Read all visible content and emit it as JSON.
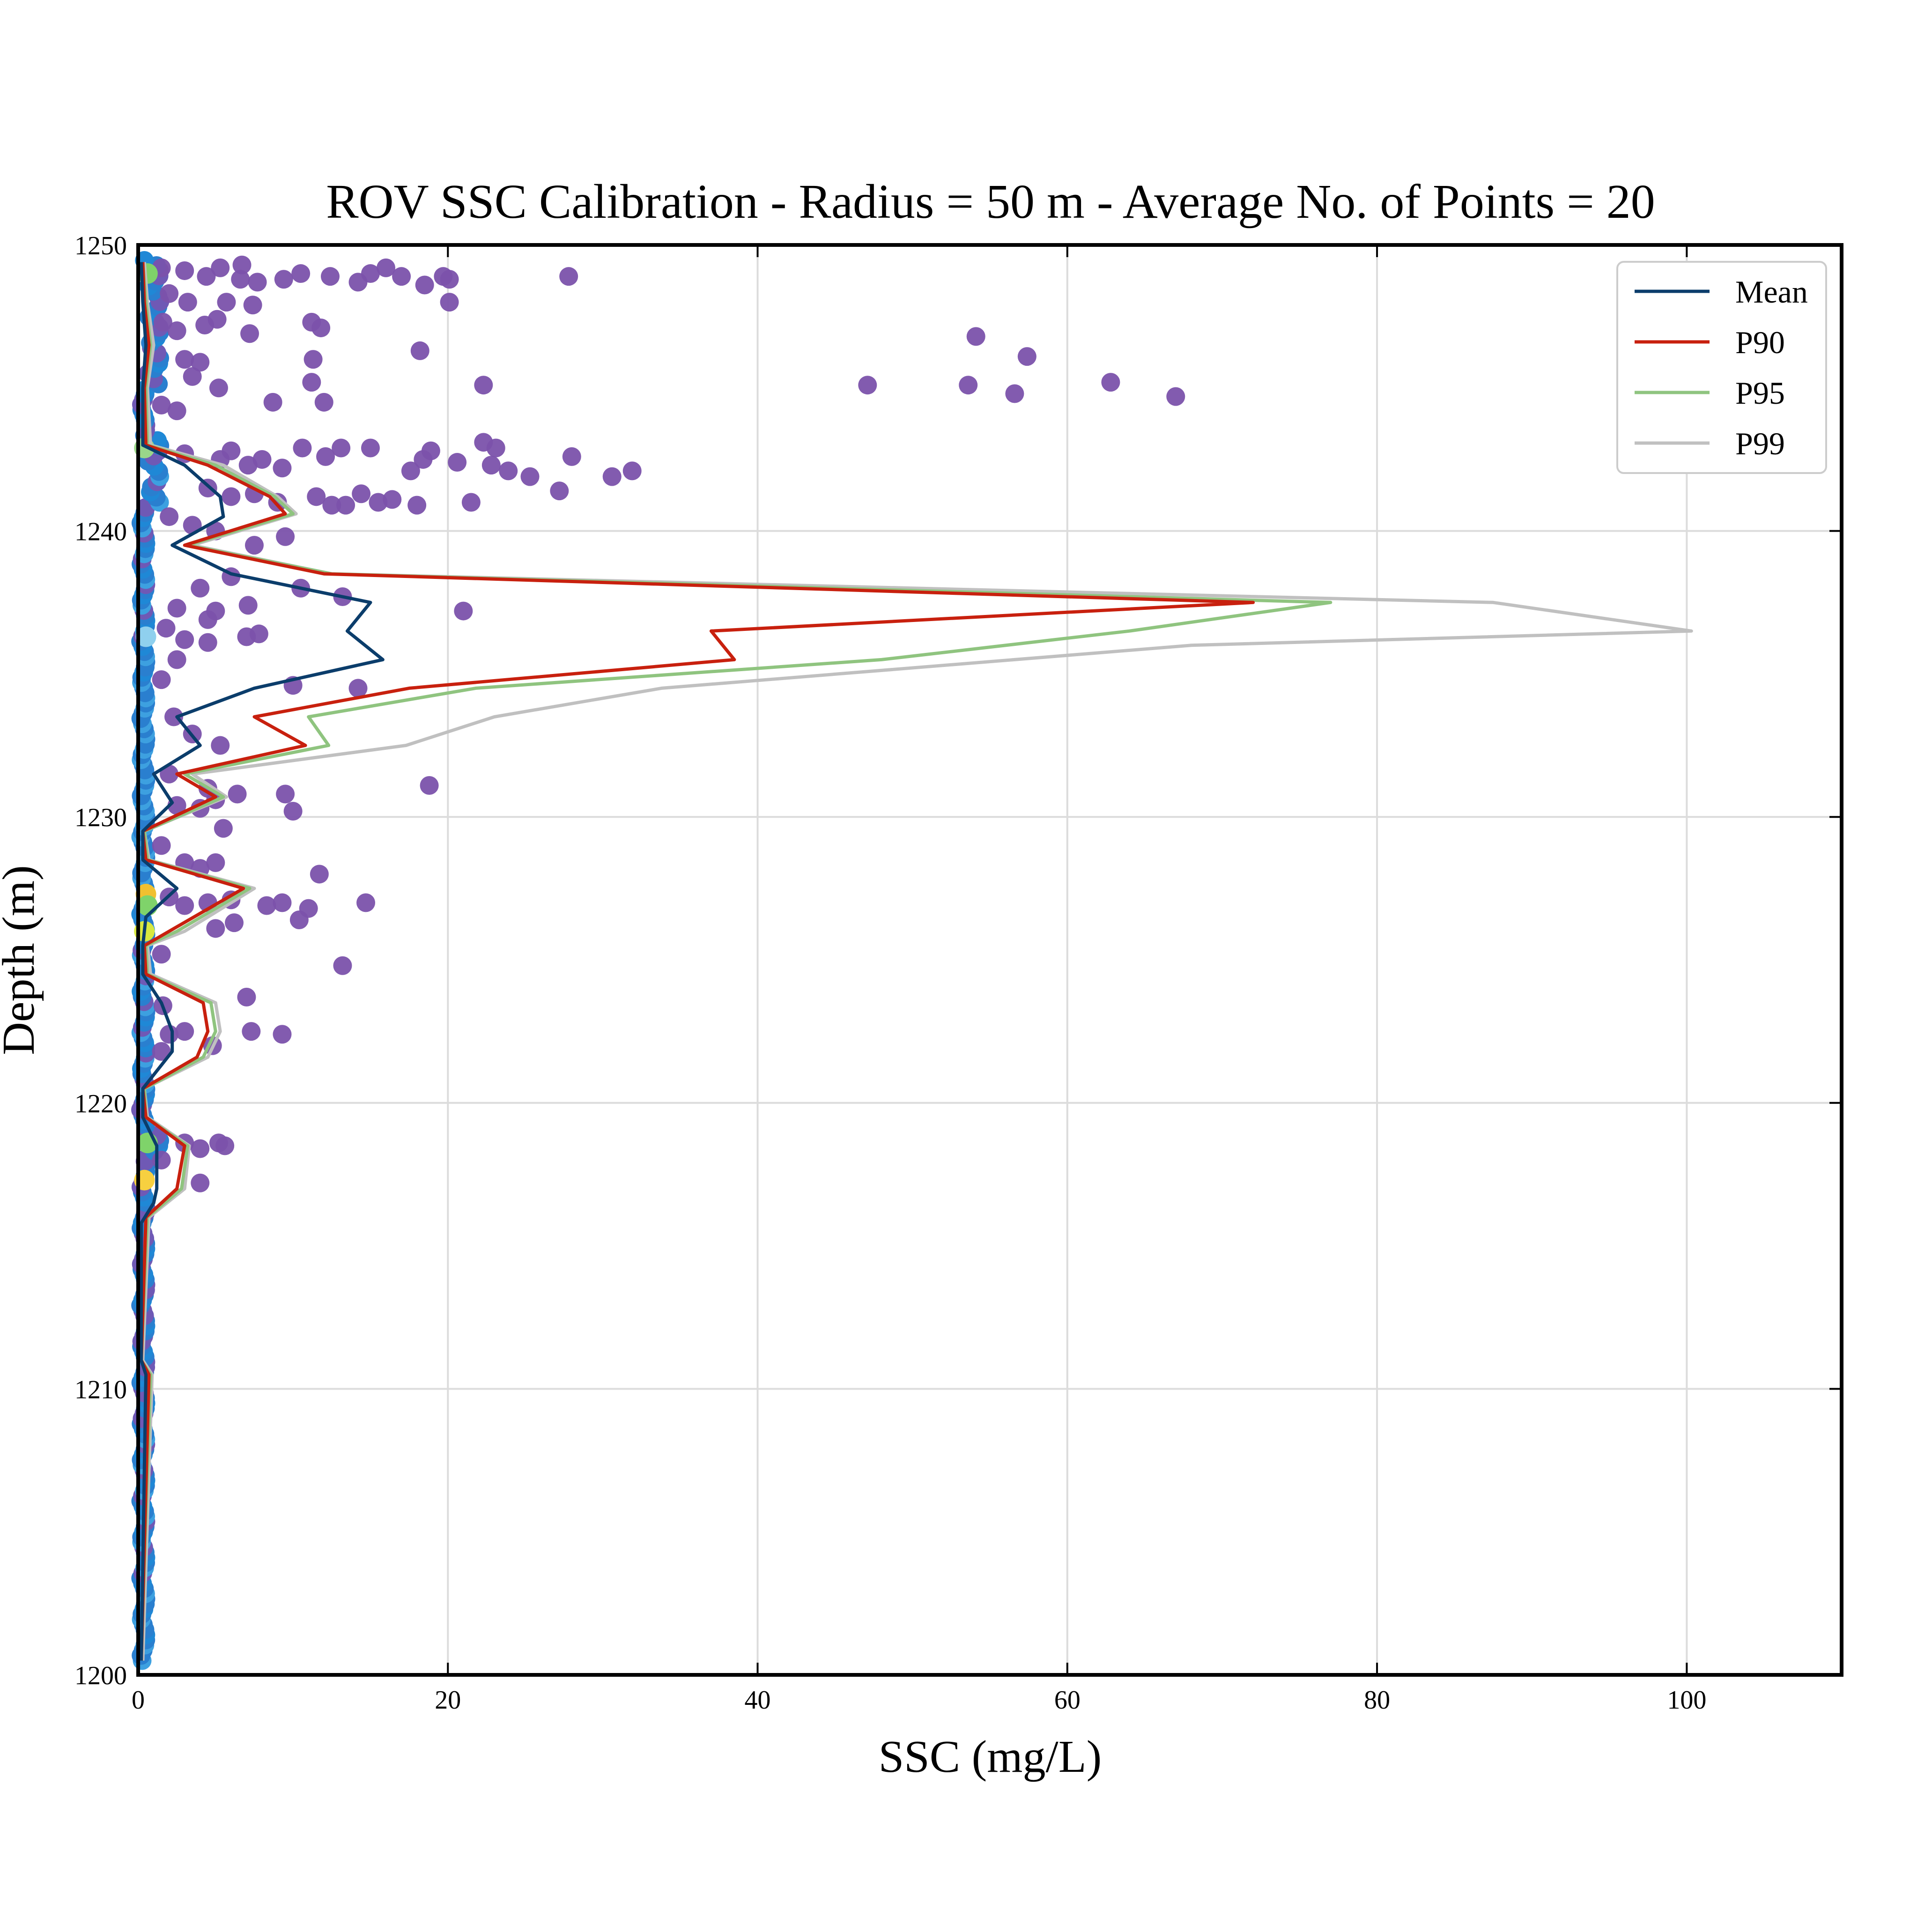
{
  "chart_data": {
    "type": "line",
    "title": "ROV SSC Calibration - Radius = 50 m - Average No. of Points = 20",
    "xlabel": "SSC (mg/L)",
    "ylabel": "Depth (m)",
    "xlim": [
      0,
      110
    ],
    "ylim": [
      1200,
      1250
    ],
    "xticks": [
      0,
      20,
      40,
      60,
      80,
      100
    ],
    "yticks": [
      1200,
      1210,
      1220,
      1230,
      1240,
      1250
    ],
    "grid": true,
    "legend_position": "top-right",
    "series": [
      {
        "name": "Mean",
        "color": "#0b3d6b",
        "points": [
          [
            0.2,
            1249.4
          ],
          [
            0.3,
            1248.0
          ],
          [
            0.5,
            1246.5
          ],
          [
            0.3,
            1245.0
          ],
          [
            0.3,
            1243.0
          ],
          [
            3.0,
            1242.3
          ],
          [
            5.3,
            1241.2
          ],
          [
            5.5,
            1240.5
          ],
          [
            2.2,
            1239.5
          ],
          [
            6.0,
            1238.5
          ],
          [
            15.0,
            1237.5
          ],
          [
            13.5,
            1236.5
          ],
          [
            15.8,
            1235.5
          ],
          [
            7.5,
            1234.5
          ],
          [
            2.5,
            1233.5
          ],
          [
            4.0,
            1232.5
          ],
          [
            1.0,
            1231.5
          ],
          [
            2.2,
            1230.5
          ],
          [
            0.3,
            1229.5
          ],
          [
            0.3,
            1228.5
          ],
          [
            2.5,
            1227.5
          ],
          [
            0.5,
            1226.5
          ],
          [
            0.3,
            1225.5
          ],
          [
            0.3,
            1224.5
          ],
          [
            1.5,
            1223.5
          ],
          [
            2.2,
            1222.5
          ],
          [
            2.2,
            1221.8
          ],
          [
            0.3,
            1220.5
          ],
          [
            0.3,
            1219.5
          ],
          [
            1.2,
            1218.5
          ],
          [
            1.2,
            1217.0
          ],
          [
            1.0,
            1216.5
          ],
          [
            0.2,
            1215.8
          ],
          [
            0.2,
            1211.0
          ],
          [
            0.5,
            1210.5
          ],
          [
            0.2,
            1200.5
          ]
        ]
      },
      {
        "name": "P90",
        "color": "#c8200e",
        "points": [
          [
            0.3,
            1249.4
          ],
          [
            0.4,
            1248.0
          ],
          [
            0.7,
            1246.5
          ],
          [
            0.4,
            1245.0
          ],
          [
            0.5,
            1243.0
          ],
          [
            4.5,
            1242.3
          ],
          [
            8.5,
            1241.2
          ],
          [
            9.5,
            1240.6
          ],
          [
            3.0,
            1239.5
          ],
          [
            12.0,
            1238.5
          ],
          [
            72.0,
            1237.5
          ],
          [
            37.0,
            1236.5
          ],
          [
            38.5,
            1235.5
          ],
          [
            17.5,
            1234.5
          ],
          [
            7.5,
            1233.5
          ],
          [
            10.8,
            1232.5
          ],
          [
            2.5,
            1231.5
          ],
          [
            5.0,
            1230.7
          ],
          [
            0.3,
            1229.5
          ],
          [
            0.5,
            1228.5
          ],
          [
            6.8,
            1227.5
          ],
          [
            2.0,
            1226.0
          ],
          [
            0.4,
            1225.5
          ],
          [
            0.5,
            1224.5
          ],
          [
            4.2,
            1223.5
          ],
          [
            4.5,
            1222.5
          ],
          [
            3.8,
            1221.6
          ],
          [
            0.3,
            1220.5
          ],
          [
            0.5,
            1219.5
          ],
          [
            3.0,
            1218.5
          ],
          [
            2.5,
            1217.0
          ],
          [
            0.5,
            1216.0
          ],
          [
            0.2,
            1211.0
          ],
          [
            0.7,
            1210.5
          ],
          [
            0.2,
            1200.5
          ]
        ]
      },
      {
        "name": "P95",
        "color": "#8fc47f",
        "points": [
          [
            0.3,
            1249.4
          ],
          [
            0.5,
            1248.0
          ],
          [
            0.8,
            1246.5
          ],
          [
            0.5,
            1245.0
          ],
          [
            0.6,
            1243.0
          ],
          [
            5.0,
            1242.3
          ],
          [
            8.8,
            1241.2
          ],
          [
            10.0,
            1240.6
          ],
          [
            3.2,
            1239.5
          ],
          [
            12.5,
            1238.5
          ],
          [
            77.0,
            1237.5
          ],
          [
            64.0,
            1236.5
          ],
          [
            48.0,
            1235.5
          ],
          [
            21.8,
            1234.5
          ],
          [
            11.0,
            1233.5
          ],
          [
            12.3,
            1232.5
          ],
          [
            3.0,
            1231.5
          ],
          [
            5.5,
            1230.7
          ],
          [
            0.4,
            1229.5
          ],
          [
            0.6,
            1228.5
          ],
          [
            7.2,
            1227.5
          ],
          [
            2.5,
            1226.0
          ],
          [
            0.5,
            1225.5
          ],
          [
            0.6,
            1224.5
          ],
          [
            4.7,
            1223.5
          ],
          [
            5.0,
            1222.5
          ],
          [
            4.2,
            1221.6
          ],
          [
            0.4,
            1220.5
          ],
          [
            0.5,
            1219.5
          ],
          [
            3.2,
            1218.5
          ],
          [
            2.8,
            1217.0
          ],
          [
            0.6,
            1216.0
          ],
          [
            0.2,
            1211.0
          ],
          [
            0.8,
            1210.5
          ],
          [
            0.2,
            1200.5
          ]
        ]
      },
      {
        "name": "P99",
        "color": "#c0c0c0",
        "points": [
          [
            0.4,
            1249.4
          ],
          [
            0.6,
            1248.0
          ],
          [
            1.0,
            1246.5
          ],
          [
            0.6,
            1245.0
          ],
          [
            0.8,
            1243.0
          ],
          [
            5.5,
            1242.3
          ],
          [
            9.0,
            1241.2
          ],
          [
            10.2,
            1240.6
          ],
          [
            3.5,
            1239.5
          ],
          [
            12.5,
            1238.5
          ],
          [
            87.5,
            1237.5
          ],
          [
            100.3,
            1236.5
          ],
          [
            68.0,
            1236.0
          ],
          [
            33.8,
            1234.5
          ],
          [
            23.0,
            1233.5
          ],
          [
            17.3,
            1232.5
          ],
          [
            3.5,
            1231.5
          ],
          [
            5.7,
            1230.7
          ],
          [
            0.4,
            1229.5
          ],
          [
            0.7,
            1228.5
          ],
          [
            7.5,
            1227.5
          ],
          [
            3.0,
            1226.0
          ],
          [
            0.6,
            1225.5
          ],
          [
            0.8,
            1224.5
          ],
          [
            5.0,
            1223.5
          ],
          [
            5.3,
            1222.5
          ],
          [
            4.5,
            1221.6
          ],
          [
            0.4,
            1220.5
          ],
          [
            0.6,
            1219.5
          ],
          [
            3.3,
            1218.5
          ],
          [
            3.0,
            1217.0
          ],
          [
            0.7,
            1216.0
          ],
          [
            0.3,
            1211.0
          ],
          [
            0.9,
            1210.5
          ],
          [
            0.3,
            1200.5
          ]
        ]
      }
    ],
    "scatter_points": [
      [
        1.5,
        1249.2
      ],
      [
        3,
        1249.1
      ],
      [
        5.3,
        1249.2
      ],
      [
        6.7,
        1249.3
      ],
      [
        4.4,
        1248.9
      ],
      [
        6.6,
        1248.8
      ],
      [
        7.7,
        1248.7
      ],
      [
        9.4,
        1248.8
      ],
      [
        10.5,
        1249.0
      ],
      [
        12.4,
        1248.9
      ],
      [
        14.2,
        1248.7
      ],
      [
        15.0,
        1249.0
      ],
      [
        16.0,
        1249.2
      ],
      [
        17.0,
        1248.9
      ],
      [
        18.5,
        1248.6
      ],
      [
        19.7,
        1248.9
      ],
      [
        20.1,
        1248.8
      ],
      [
        20.1,
        1248.0
      ],
      [
        27.8,
        1248.9
      ],
      [
        2.0,
        1248.3
      ],
      [
        3.2,
        1248.0
      ],
      [
        5.7,
        1248.0
      ],
      [
        7.4,
        1247.9
      ],
      [
        1.6,
        1247.3
      ],
      [
        2.5,
        1247.0
      ],
      [
        4.3,
        1247.2
      ],
      [
        5.1,
        1247.4
      ],
      [
        7.2,
        1246.9
      ],
      [
        11.2,
        1247.3
      ],
      [
        11.8,
        1247.1
      ],
      [
        18.2,
        1246.3
      ],
      [
        3.0,
        1246.0
      ],
      [
        4.0,
        1245.9
      ],
      [
        11.3,
        1246.0
      ],
      [
        3.5,
        1245.4
      ],
      [
        5.2,
        1245.0
      ],
      [
        11.2,
        1245.2
      ],
      [
        12.0,
        1244.5
      ],
      [
        22.3,
        1245.1
      ],
      [
        8.7,
        1244.5
      ],
      [
        2.5,
        1244.2
      ],
      [
        1.5,
        1244.4
      ],
      [
        54.1,
        1246.8
      ],
      [
        57.4,
        1246.1
      ],
      [
        47.1,
        1245.1
      ],
      [
        53.6,
        1245.1
      ],
      [
        56.6,
        1244.8
      ],
      [
        62.8,
        1245.2
      ],
      [
        67.0,
        1244.7
      ],
      [
        3.0,
        1242.7
      ],
      [
        5.3,
        1242.5
      ],
      [
        6.0,
        1242.8
      ],
      [
        7.1,
        1242.3
      ],
      [
        8.0,
        1242.5
      ],
      [
        9.3,
        1242.2
      ],
      [
        10.6,
        1242.9
      ],
      [
        12.1,
        1242.6
      ],
      [
        13.1,
        1242.9
      ],
      [
        15.0,
        1242.9
      ],
      [
        18.9,
        1242.8
      ],
      [
        18.4,
        1242.5
      ],
      [
        17.6,
        1242.1
      ],
      [
        20.6,
        1242.4
      ],
      [
        22.3,
        1243.1
      ],
      [
        23.1,
        1242.9
      ],
      [
        22.8,
        1242.3
      ],
      [
        23.9,
        1242.1
      ],
      [
        25.3,
        1241.9
      ],
      [
        28.0,
        1242.6
      ],
      [
        30.6,
        1241.9
      ],
      [
        31.9,
        1242.1
      ],
      [
        27.2,
        1241.4
      ],
      [
        4.5,
        1241.5
      ],
      [
        6.0,
        1241.2
      ],
      [
        7.5,
        1241.3
      ],
      [
        9.0,
        1241.0
      ],
      [
        11.5,
        1241.2
      ],
      [
        12.5,
        1240.9
      ],
      [
        13.4,
        1240.9
      ],
      [
        14.4,
        1241.3
      ],
      [
        15.5,
        1241.0
      ],
      [
        16.4,
        1241.1
      ],
      [
        18.0,
        1240.9
      ],
      [
        21.5,
        1241.0
      ],
      [
        2.0,
        1240.5
      ],
      [
        3.5,
        1240.2
      ],
      [
        5.0,
        1240.0
      ],
      [
        7.5,
        1239.5
      ],
      [
        9.5,
        1239.8
      ],
      [
        4.0,
        1238.0
      ],
      [
        6.0,
        1238.4
      ],
      [
        10.5,
        1238.0
      ],
      [
        13.2,
        1237.7
      ],
      [
        5.0,
        1237.2
      ],
      [
        7.1,
        1237.4
      ],
      [
        21.0,
        1237.2
      ],
      [
        2.5,
        1237.3
      ],
      [
        4.5,
        1236.9
      ],
      [
        1.8,
        1236.6
      ],
      [
        3.0,
        1236.2
      ],
      [
        4.5,
        1236.1
      ],
      [
        7.0,
        1236.3
      ],
      [
        7.8,
        1236.4
      ],
      [
        2.5,
        1235.5
      ],
      [
        1.5,
        1234.8
      ],
      [
        10.0,
        1234.6
      ],
      [
        14.2,
        1234.5
      ],
      [
        2.3,
        1233.5
      ],
      [
        3.5,
        1232.9
      ],
      [
        5.3,
        1232.5
      ],
      [
        2.0,
        1231.5
      ],
      [
        4.5,
        1231.0
      ],
      [
        5.0,
        1230.6
      ],
      [
        6.4,
        1230.8
      ],
      [
        9.5,
        1230.8
      ],
      [
        10.0,
        1230.2
      ],
      [
        18.8,
        1231.1
      ],
      [
        2.5,
        1230.4
      ],
      [
        4.0,
        1230.3
      ],
      [
        1.5,
        1229.0
      ],
      [
        5.5,
        1229.6
      ],
      [
        3.0,
        1228.4
      ],
      [
        4.0,
        1228.2
      ],
      [
        5.0,
        1228.4
      ],
      [
        11.7,
        1228.0
      ],
      [
        2.0,
        1227.2
      ],
      [
        3.0,
        1226.9
      ],
      [
        4.5,
        1227.0
      ],
      [
        6.0,
        1227.1
      ],
      [
        8.3,
        1226.9
      ],
      [
        9.3,
        1227.0
      ],
      [
        11.0,
        1226.8
      ],
      [
        14.7,
        1227.0
      ],
      [
        6.2,
        1226.3
      ],
      [
        10.4,
        1226.4
      ],
      [
        5.0,
        1226.1
      ],
      [
        1.5,
        1225.2
      ],
      [
        13.2,
        1224.8
      ],
      [
        7.0,
        1223.7
      ],
      [
        1.6,
        1223.4
      ],
      [
        7.3,
        1222.5
      ],
      [
        9.3,
        1222.4
      ],
      [
        2.0,
        1222.4
      ],
      [
        3.0,
        1222.5
      ],
      [
        1.5,
        1221.8
      ],
      [
        4.8,
        1222.0
      ],
      [
        3.0,
        1218.6
      ],
      [
        4.0,
        1218.4
      ],
      [
        5.2,
        1218.6
      ],
      [
        5.6,
        1218.5
      ],
      [
        4.0,
        1217.2
      ],
      [
        1.5,
        1218.0
      ]
    ]
  }
}
